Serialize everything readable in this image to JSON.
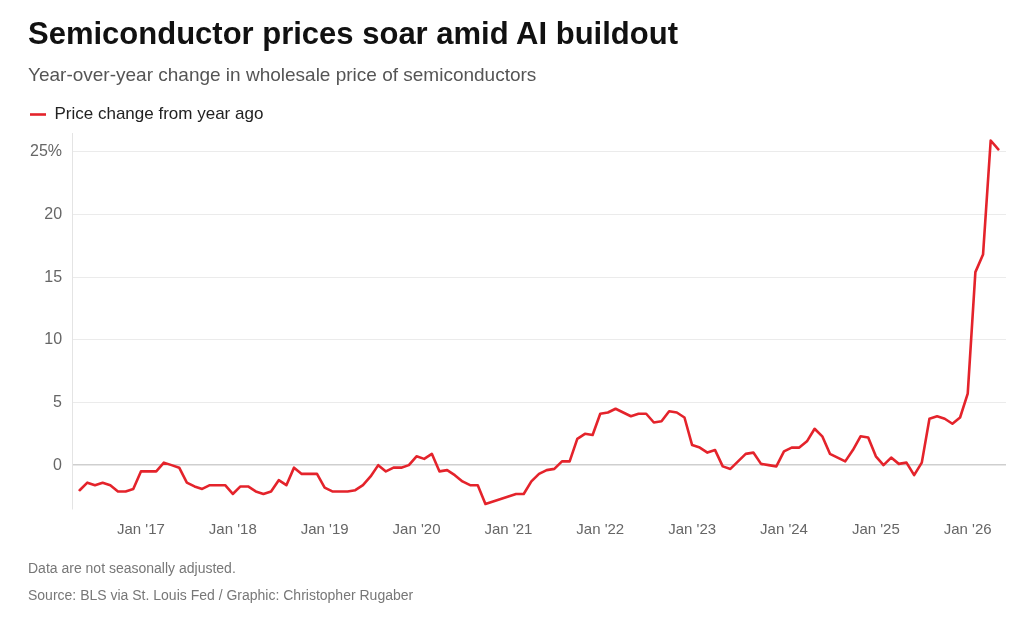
{
  "chart_data": {
    "type": "line",
    "title": "Semiconductor prices soar amid AI buildout",
    "subtitle": "Year-over-year change in wholesale price of semiconductors",
    "annotations": [
      "Data are not seasonally adjusted.",
      "Source: BLS via St. Louis Fed / Graphic: Christopher Rugaber"
    ],
    "x": [
      "2016-05",
      "2016-06",
      "2016-07",
      "2016-08",
      "2016-09",
      "2016-10",
      "2016-11",
      "2016-12",
      "2017-01",
      "2017-02",
      "2017-03",
      "2017-04",
      "2017-05",
      "2017-06",
      "2017-07",
      "2017-08",
      "2017-09",
      "2017-10",
      "2017-11",
      "2017-12",
      "2018-01",
      "2018-02",
      "2018-03",
      "2018-04",
      "2018-05",
      "2018-06",
      "2018-07",
      "2018-08",
      "2018-09",
      "2018-10",
      "2018-11",
      "2018-12",
      "2019-01",
      "2019-02",
      "2019-03",
      "2019-04",
      "2019-05",
      "2019-06",
      "2019-07",
      "2019-08",
      "2019-09",
      "2019-10",
      "2019-11",
      "2019-12",
      "2020-01",
      "2020-02",
      "2020-03",
      "2020-04",
      "2020-05",
      "2020-06",
      "2020-07",
      "2020-08",
      "2020-09",
      "2020-10",
      "2020-11",
      "2020-12",
      "2021-01",
      "2021-02",
      "2021-03",
      "2021-04",
      "2021-05",
      "2021-06",
      "2021-07",
      "2021-08",
      "2021-09",
      "2021-10",
      "2021-11",
      "2021-12",
      "2022-01",
      "2022-02",
      "2022-03",
      "2022-04",
      "2022-05",
      "2022-06",
      "2022-07",
      "2022-08",
      "2022-09",
      "2022-10",
      "2022-11",
      "2022-12",
      "2023-01",
      "2023-02",
      "2023-03",
      "2023-04",
      "2023-05",
      "2023-06",
      "2023-07",
      "2023-08",
      "2023-09",
      "2023-10",
      "2023-11",
      "2023-12",
      "2024-01",
      "2024-02",
      "2024-03",
      "2024-04",
      "2024-05",
      "2024-06",
      "2024-07",
      "2024-08",
      "2024-09",
      "2024-10",
      "2024-11",
      "2024-12",
      "2025-01",
      "2025-02",
      "2025-03",
      "2025-04",
      "2025-05",
      "2025-06",
      "2025-07",
      "2025-08",
      "2025-09",
      "2025-10",
      "2025-11",
      "2025-12",
      "2026-01",
      "2026-02",
      "2026-03",
      "2026-04",
      "2026-05"
    ],
    "series": [
      {
        "name": "Price change from year ago",
        "color": "#e4232b",
        "values": [
          -2.0,
          -1.4,
          -1.6,
          -1.4,
          -1.6,
          -2.1,
          -2.1,
          -1.9,
          -0.5,
          -0.5,
          -0.5,
          0.2,
          0.0,
          -0.2,
          -1.4,
          -1.7,
          -1.9,
          -1.6,
          -1.6,
          -1.6,
          -2.3,
          -1.7,
          -1.7,
          -2.1,
          -2.3,
          -2.1,
          -1.2,
          -1.6,
          -0.2,
          -0.7,
          -0.7,
          -0.7,
          -1.8,
          -2.1,
          -2.1,
          -2.1,
          -2.0,
          -1.6,
          -0.9,
          0.0,
          -0.5,
          -0.2,
          -0.2,
          0.0,
          0.7,
          0.5,
          0.9,
          -0.5,
          -0.4,
          -0.8,
          -1.3,
          -1.6,
          -1.6,
          -3.1,
          -2.9,
          -2.7,
          -2.5,
          -2.3,
          -2.3,
          -1.3,
          -0.7,
          -0.4,
          -0.3,
          0.3,
          0.3,
          2.1,
          2.5,
          2.4,
          4.1,
          4.2,
          4.5,
          4.2,
          3.9,
          4.1,
          4.1,
          3.4,
          3.5,
          4.3,
          4.2,
          3.8,
          1.6,
          1.4,
          1.0,
          1.2,
          -0.1,
          -0.3,
          0.3,
          0.9,
          1.0,
          0.1,
          0.0,
          -0.1,
          1.1,
          1.4,
          1.4,
          1.9,
          2.9,
          2.3,
          0.9,
          0.6,
          0.3,
          1.2,
          2.3,
          2.2,
          0.7,
          0.0,
          0.6,
          0.1,
          0.2,
          -0.8,
          0.2,
          3.7,
          3.9,
          3.7,
          3.3,
          3.8,
          5.7,
          15.4,
          16.8,
          25.9,
          25.2
        ]
      }
    ],
    "xlim": [
      "2016-04",
      "2026-06"
    ],
    "xticks": [
      {
        "value": "2017-01",
        "label": "Jan '17"
      },
      {
        "value": "2018-01",
        "label": "Jan '18"
      },
      {
        "value": "2019-01",
        "label": "Jan '19"
      },
      {
        "value": "2020-01",
        "label": "Jan '20"
      },
      {
        "value": "2021-01",
        "label": "Jan '21"
      },
      {
        "value": "2022-01",
        "label": "Jan '22"
      },
      {
        "value": "2023-01",
        "label": "Jan '23"
      },
      {
        "value": "2024-01",
        "label": "Jan '24"
      },
      {
        "value": "2025-01",
        "label": "Jan '25"
      },
      {
        "value": "2026-01",
        "label": "Jan '26"
      }
    ],
    "ylim": [
      -3.5,
      26.5
    ],
    "yticks": [
      0,
      5,
      10,
      15,
      20,
      {
        "value": 25,
        "label": "25%"
      }
    ],
    "grid": "y",
    "legend": "top left",
    "marker": "none",
    "line_style": "solid"
  }
}
